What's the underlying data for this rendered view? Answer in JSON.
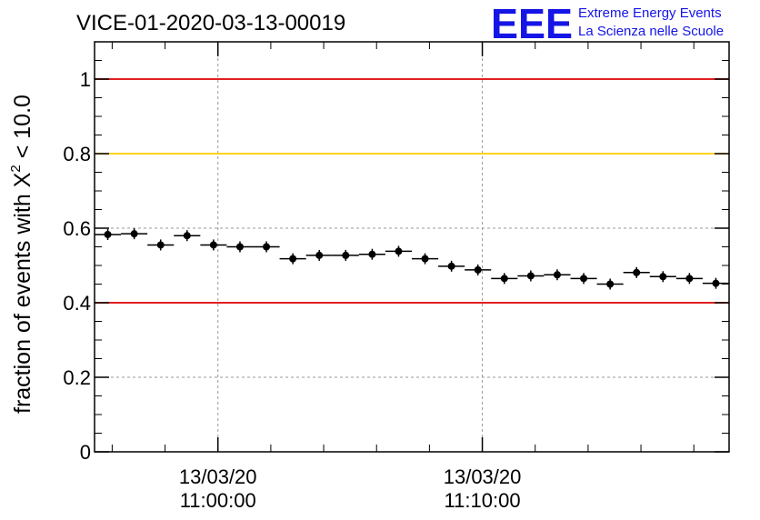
{
  "header": {
    "title": "VICE-01-2020-03-13-00019",
    "logo_mark": "EEE",
    "logo_line1": "Extreme Energy Events",
    "logo_line2": "La Scienza nelle Scuole"
  },
  "colors": {
    "logo": "#1515e6",
    "threshold_red": "#dd0000",
    "threshold_yellow": "#ffcc00",
    "markers": "#000000",
    "grid": "#999999"
  },
  "chart_data": {
    "type": "scatter",
    "title": "VICE-01-2020-03-13-00019",
    "ylabel_prefix": "fraction of events with ",
    "ylabel_symbol": "X",
    "ylabel_power": "2",
    "ylabel_suffix": " < 10.0",
    "ylim": [
      0,
      1.1
    ],
    "y_ticks": [
      {
        "value": 0,
        "label": "0"
      },
      {
        "value": 0.2,
        "label": "0.2"
      },
      {
        "value": 0.4,
        "label": "0.4"
      },
      {
        "value": 0.6,
        "label": "0.6"
      },
      {
        "value": 0.8,
        "label": "0.8"
      },
      {
        "value": 1,
        "label": "1"
      }
    ],
    "xlim": [
      "2020-03-13 10:55:20",
      "2020-03-13 11:19:20"
    ],
    "x_major_ticks": [
      {
        "value": "2020-03-13 11:00:00",
        "date": "13/03/20",
        "time": "11:00:00"
      },
      {
        "value": "2020-03-13 11:10:00",
        "date": "13/03/20",
        "time": "11:10:00"
      }
    ],
    "x_minor_ticks": [
      "2020-03-13 10:56:00",
      "2020-03-13 10:58:00",
      "2020-03-13 11:02:00",
      "2020-03-13 11:04:00",
      "2020-03-13 11:06:00",
      "2020-03-13 11:08:00",
      "2020-03-13 11:12:00",
      "2020-03-13 11:14:00",
      "2020-03-13 11:16:00",
      "2020-03-13 11:18:00"
    ],
    "bin_width_seconds": 60,
    "thresholds": [
      {
        "value": 1.0,
        "color": "#dd0000"
      },
      {
        "value": 0.8,
        "color": "#ffcc00"
      },
      {
        "value": 0.4,
        "color": "#dd0000"
      }
    ],
    "grid": true,
    "series": [
      {
        "x": [
          "2020-03-13 10:55:50",
          "2020-03-13 10:56:50",
          "2020-03-13 10:57:50",
          "2020-03-13 10:58:50",
          "2020-03-13 10:59:50",
          "2020-03-13 11:00:50",
          "2020-03-13 11:01:50",
          "2020-03-13 11:02:50",
          "2020-03-13 11:03:50",
          "2020-03-13 11:04:50",
          "2020-03-13 11:05:50",
          "2020-03-13 11:06:50",
          "2020-03-13 11:07:50",
          "2020-03-13 11:08:50",
          "2020-03-13 11:09:50",
          "2020-03-13 11:10:50",
          "2020-03-13 11:11:50",
          "2020-03-13 11:12:50",
          "2020-03-13 11:13:50",
          "2020-03-13 11:14:50",
          "2020-03-13 11:15:50",
          "2020-03-13 11:16:50",
          "2020-03-13 11:17:50",
          "2020-03-13 11:18:50"
        ],
        "y": [
          0.583,
          0.585,
          0.555,
          0.58,
          0.555,
          0.55,
          0.55,
          0.518,
          0.527,
          0.527,
          0.53,
          0.538,
          0.518,
          0.498,
          0.488,
          0.465,
          0.472,
          0.475,
          0.465,
          0.45,
          0.481,
          0.47,
          0.465,
          0.452
        ]
      }
    ]
  }
}
